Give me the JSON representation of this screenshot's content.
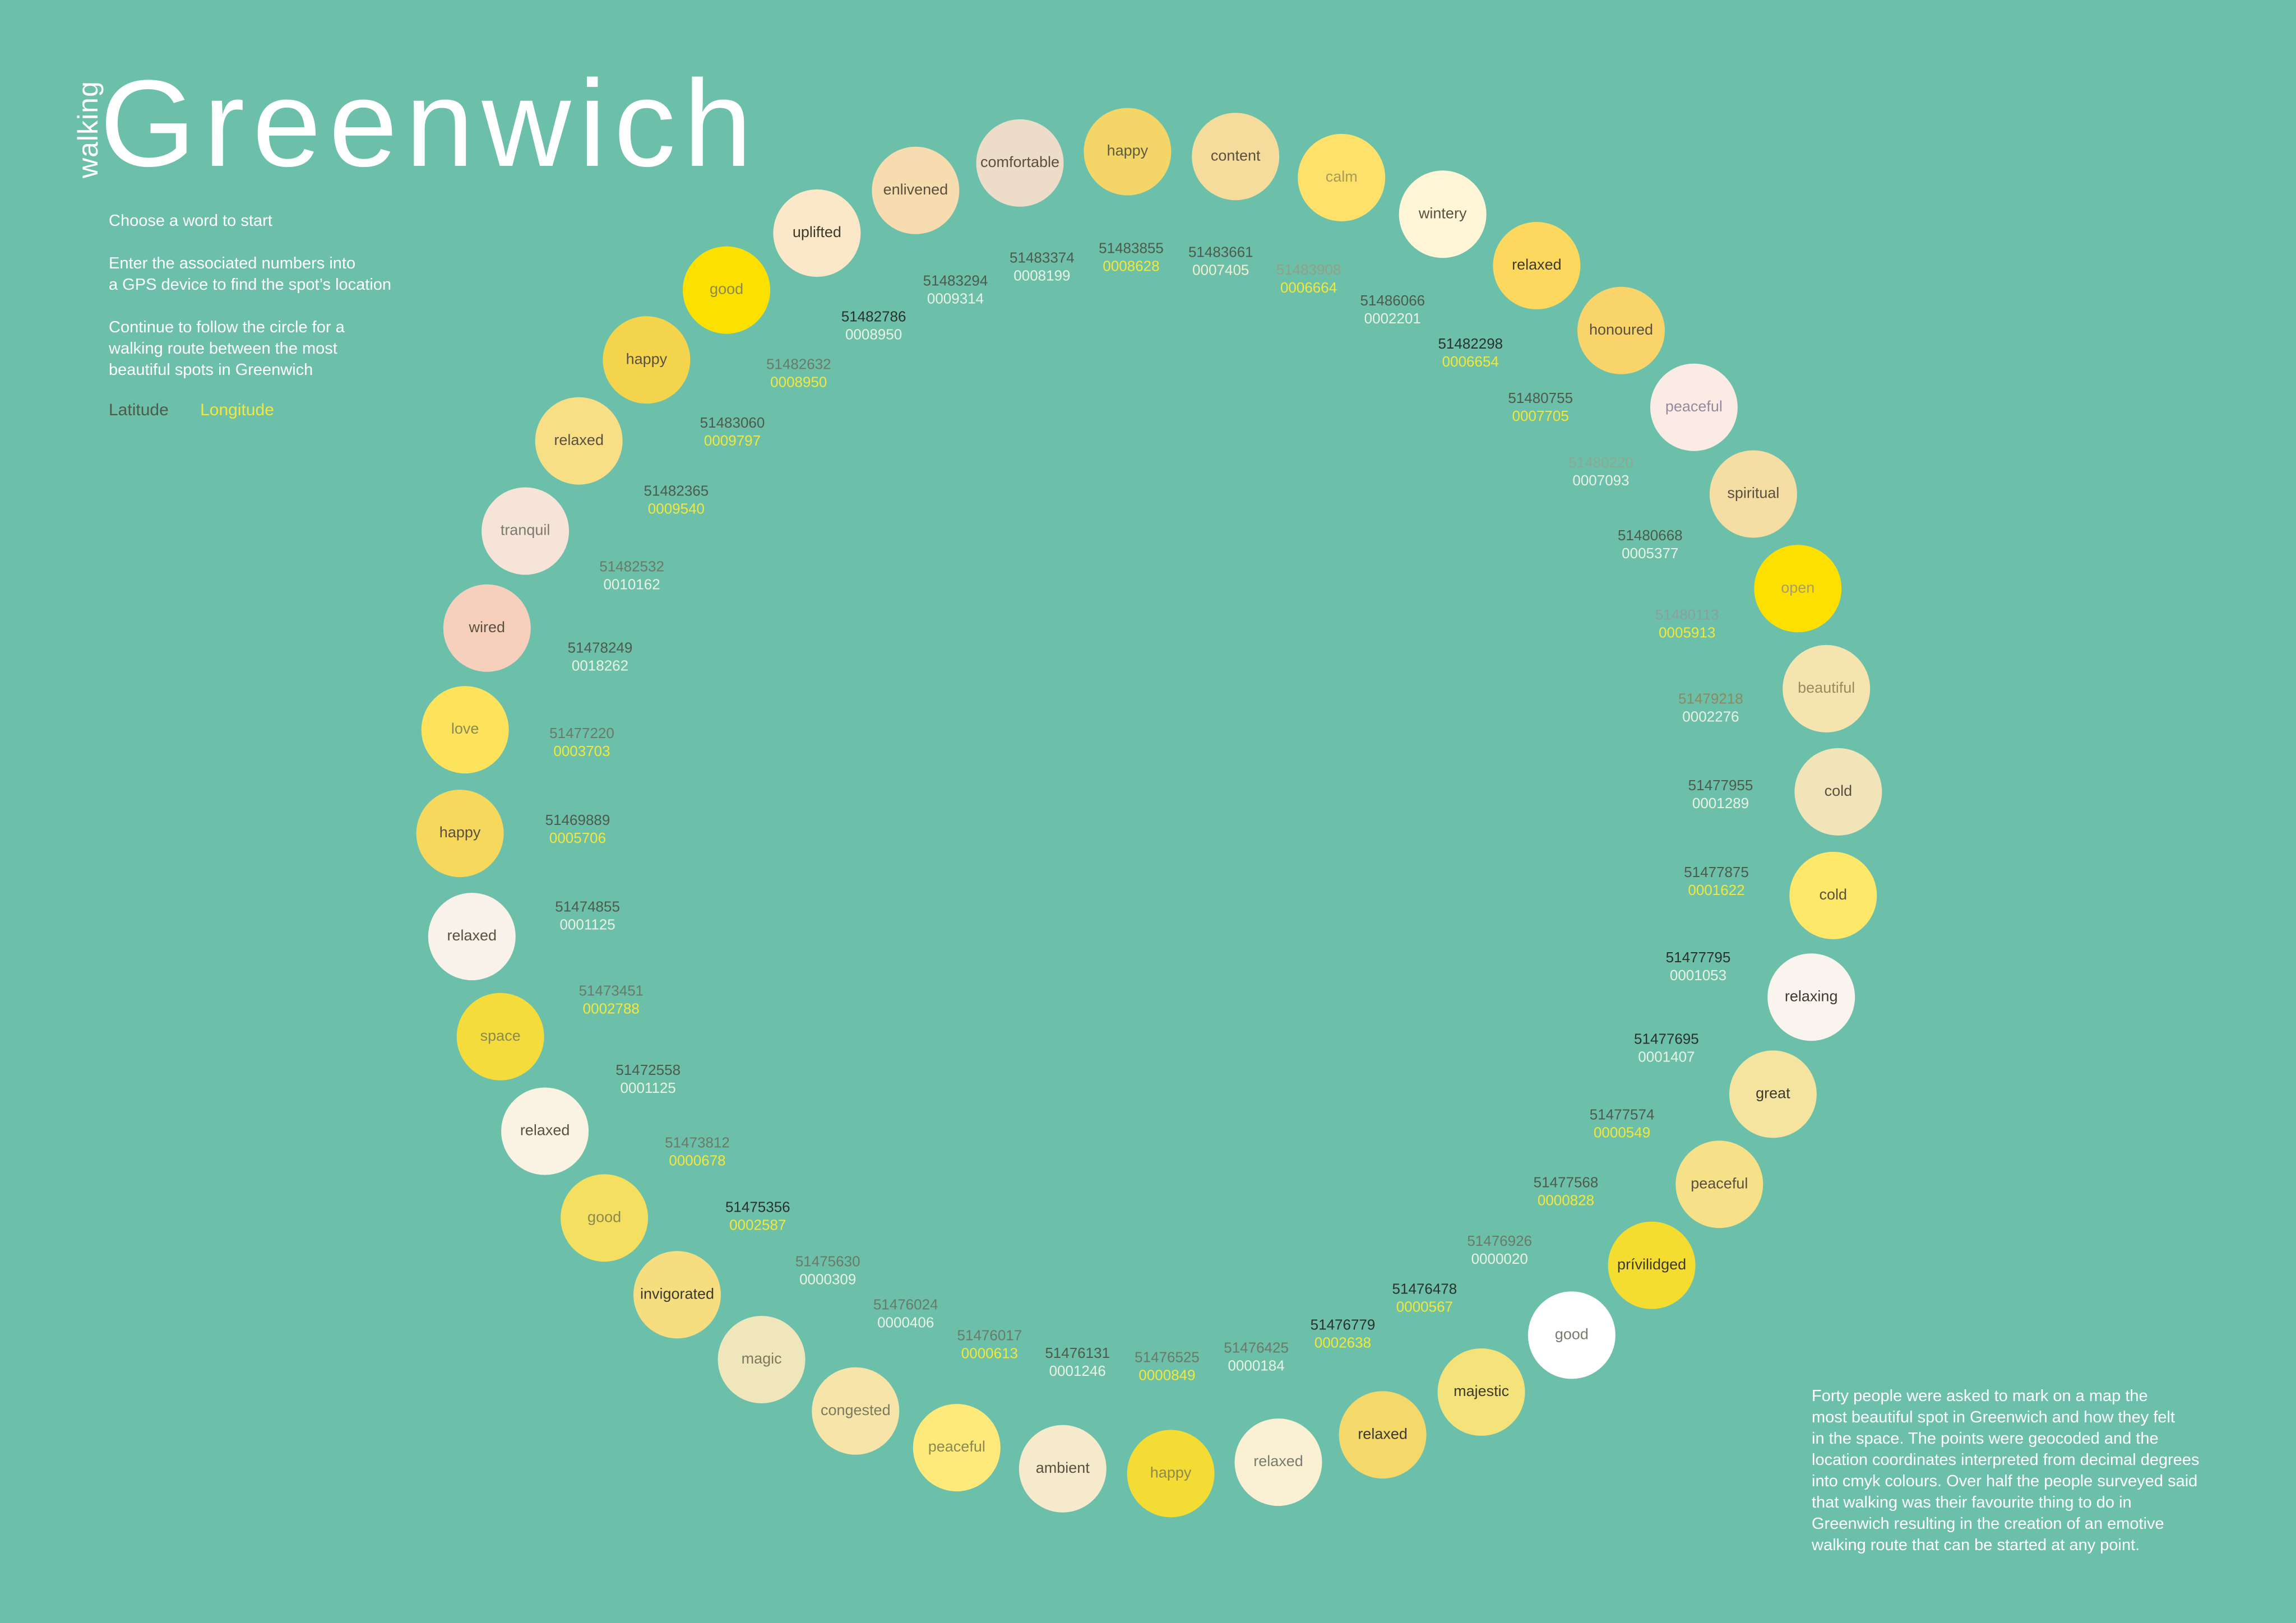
{
  "header": {
    "subtitle": "walking",
    "title": "Greenwich"
  },
  "intro": {
    "p1": "Choose a word to start",
    "p2": "Enter the associated numbers into\na GPS device to find the spot’s location",
    "p3": "Continue to follow the circle for a\nwalking route between the most\nbeautiful spots in Greenwich"
  },
  "legend": {
    "latitude_label": "Latitude",
    "longitude_label": "Longitude",
    "latitude_color": "#4d5b4c",
    "longitude_color": "#f5e63a"
  },
  "footnote": "Forty people were asked to mark on a map the\nmost beautiful spot in Greenwich and how they felt\nin the space. The points were geocoded and the\nlocation coordinates interpreted from decimal degrees\ninto cmyk colours. Over half the people surveyed said\nthat walking was their favourite thing to do in\nGreenwich resulting in the creation of an emotive\nwalking route that can be started at any  point.",
  "spots": [
    {
      "word": "happy",
      "lat": "51483855",
      "lon": "0008628",
      "fill": "#f4d568",
      "latc": "#4d5b4c",
      "lonc": "#f5e63a",
      "wordc": "#5f5a3d"
    },
    {
      "word": "content",
      "lat": "51483661",
      "lon": "0007405",
      "fill": "#f6dc9c",
      "latc": "#4d5b4c",
      "lonc": "#f2f0d0",
      "wordc": "#5a5040"
    },
    {
      "word": "calm",
      "lat": "51483908",
      "lon": "0006664",
      "fill": "#fde16a",
      "latc": "#92a088",
      "lonc": "#f5e63a",
      "wordc": "#a89a5a"
    },
    {
      "word": "wintery",
      "lat": "51486066",
      "lon": "0002201",
      "fill": "#fff6d8",
      "latc": "#4d5b4c",
      "lonc": "#eaf2e4",
      "wordc": "#5a5040"
    },
    {
      "word": "relaxed",
      "lat": "51482298",
      "lon": "0006654",
      "fill": "#fcd95e",
      "latc": "#2a322a",
      "lonc": "#f5e63a",
      "wordc": "#3c3a2c"
    },
    {
      "word": "honoured",
      "lat": "51480755",
      "lon": "0007705",
      "fill": "#f8d46a",
      "latc": "#4d5b4c",
      "lonc": "#f5e63a",
      "wordc": "#5a5040"
    },
    {
      "word": "peaceful",
      "lat": "51480220",
      "lon": "0007093",
      "fill": "#faece4",
      "latc": "#8aa894",
      "lonc": "#eaf2e4",
      "wordc": "#9a88a0"
    },
    {
      "word": "spiritual",
      "lat": "51480668",
      "lon": "0005377",
      "fill": "#f4dea4",
      "latc": "#4d5b4c",
      "lonc": "#eaf2e4",
      "wordc": "#5a5040"
    },
    {
      "word": "open",
      "lat": "51480113",
      "lon": "0005913",
      "fill": "#fde000",
      "latc": "#8aa0a0",
      "lonc": "#f5e63a",
      "wordc": "#a8a060"
    },
    {
      "word": "beautiful",
      "lat": "51479218",
      "lon": "0002276",
      "fill": "#f6e4b0",
      "latc": "#8a8a60",
      "lonc": "#eaf2e4",
      "wordc": "#9a8a60"
    },
    {
      "word": "cold",
      "lat": "51477955",
      "lon": "0001289",
      "fill": "#f0e4b8",
      "latc": "#4d5b4c",
      "lonc": "#eaf2e4",
      "wordc": "#5a5040"
    },
    {
      "word": "cold",
      "lat": "51477875",
      "lon": "0001622",
      "fill": "#fde86a",
      "latc": "#4d5b4c",
      "lonc": "#f5e63a",
      "wordc": "#5a5040"
    },
    {
      "word": "relaxing",
      "lat": "51477795",
      "lon": "0001053",
      "fill": "#faf4ee",
      "latc": "#2a322a",
      "lonc": "#eaf2e4",
      "wordc": "#3c3a2c"
    },
    {
      "word": "great",
      "lat": "51477695",
      "lon": "0001407",
      "fill": "#f4e4a0",
      "latc": "#2a322a",
      "lonc": "#eaf2e4",
      "wordc": "#3c3a2c"
    },
    {
      "word": "peaceful",
      "lat": "51477574",
      "lon": "0000549",
      "fill": "#f6e088",
      "latc": "#4d5b4c",
      "lonc": "#f5e63a",
      "wordc": "#5a5040"
    },
    {
      "word": "prívilidged",
      "lat": "51477568",
      "lon": "0000828",
      "fill": "#f4dc30",
      "latc": "#4d5b4c",
      "lonc": "#f5e63a",
      "wordc": "#3c3a2c"
    },
    {
      "word": "good",
      "lat": "51476926",
      "lon": "0000020",
      "fill": "#ffffff",
      "latc": "#6a7a68",
      "lonc": "#eaf2e4",
      "wordc": "#7a7a70"
    },
    {
      "word": "majestic",
      "lat": "51476478",
      "lon": "0000567",
      "fill": "#f4e27a",
      "latc": "#2a322a",
      "lonc": "#f5e63a",
      "wordc": "#3c3a2c"
    },
    {
      "word": "relaxed",
      "lat": "51476779",
      "lon": "0002638",
      "fill": "#f4d86a",
      "latc": "#2a322a",
      "lonc": "#f5e63a",
      "wordc": "#3c3a2c"
    },
    {
      "word": "relaxed",
      "lat": "51476425",
      "lon": "0000184",
      "fill": "#faf0d4",
      "latc": "#6a7a68",
      "lonc": "#eaf2e4",
      "wordc": "#7a7a70"
    },
    {
      "word": "happy",
      "lat": "51476525",
      "lon": "0000849",
      "fill": "#f4dc34",
      "latc": "#6a7a68",
      "lonc": "#f5e63a",
      "wordc": "#8a8a50"
    },
    {
      "word": "ambient",
      "lat": "51476131",
      "lon": "0001246",
      "fill": "#f6eacc",
      "latc": "#4d5b4c",
      "lonc": "#eaf2e4",
      "wordc": "#5a5040"
    },
    {
      "word": "peaceful",
      "lat": "51476017",
      "lon": "0000613",
      "fill": "#fdea7a",
      "latc": "#6a7a68",
      "lonc": "#f5e63a",
      "wordc": "#8a8a50"
    },
    {
      "word": "congested",
      "lat": "51476024",
      "lon": "0000406",
      "fill": "#f6e4a8",
      "latc": "#6a7a68",
      "lonc": "#eaf2e4",
      "wordc": "#7a7a60"
    },
    {
      "word": "magic",
      "lat": "51475630",
      "lon": "0000309",
      "fill": "#f0e6bc",
      "latc": "#6a7a68",
      "lonc": "#eaf2e4",
      "wordc": "#7a7a60"
    },
    {
      "word": "invigorated",
      "lat": "51475356",
      "lon": "0002587",
      "fill": "#f6de80",
      "latc": "#2a322a",
      "lonc": "#f5e63a",
      "wordc": "#3c3a2c"
    },
    {
      "word": "good",
      "lat": "51473812",
      "lon": "0000678",
      "fill": "#f4df60",
      "latc": "#6a7a68",
      "lonc": "#f5e63a",
      "wordc": "#8a8a50"
    },
    {
      "word": "relaxed",
      "lat": "51472558",
      "lon": "0001125",
      "fill": "#faf2e2",
      "latc": "#4d5b4c",
      "lonc": "#eaf2e4",
      "wordc": "#5a5040"
    },
    {
      "word": "space",
      "lat": "51473451",
      "lon": "0002788",
      "fill": "#f4dc3c",
      "latc": "#6a7a68",
      "lonc": "#f5e63a",
      "wordc": "#8a8a50"
    },
    {
      "word": "relaxed",
      "lat": "51474855",
      "lon": "0001125",
      "fill": "#f8f2ea",
      "latc": "#4d5b4c",
      "lonc": "#eaf2e4",
      "wordc": "#5a5040"
    },
    {
      "word": "happy",
      "lat": "51469889",
      "lon": "0005706",
      "fill": "#f6d85c",
      "latc": "#4d5b4c",
      "lonc": "#f5e63a",
      "wordc": "#5a5040"
    },
    {
      "word": "love",
      "lat": "51477220",
      "lon": "0003703",
      "fill": "#fde25c",
      "latc": "#6a7a68",
      "lonc": "#f5e63a",
      "wordc": "#8a8a50"
    },
    {
      "word": "wired",
      "lat": "51478249",
      "lon": "0018262",
      "fill": "#f6d0bc",
      "latc": "#4d5b4c",
      "lonc": "#eaf2e4",
      "wordc": "#5a5040"
    },
    {
      "word": "tranquil",
      "lat": "51482532",
      "lon": "0010162",
      "fill": "#f6e4d8",
      "latc": "#6a7a68",
      "lonc": "#eaf2e4",
      "wordc": "#7a7a70"
    },
    {
      "word": "relaxed",
      "lat": "51482365",
      "lon": "0009540",
      "fill": "#f8de84",
      "latc": "#4d5b4c",
      "lonc": "#f5e63a",
      "wordc": "#5a5040"
    },
    {
      "word": "happy",
      "lat": "51483060",
      "lon": "0009797",
      "fill": "#f4d44c",
      "latc": "#4d5b4c",
      "lonc": "#f5e63a",
      "wordc": "#5a5040"
    },
    {
      "word": "good",
      "lat": "51482632",
      "lon": "0008950",
      "fill": "#fce000",
      "latc": "#6a7a68",
      "lonc": "#f5e63a",
      "wordc": "#8a8a50"
    },
    {
      "word": "uplifted",
      "lat": "51482786",
      "lon": "0008950",
      "fill": "#fbe8c8",
      "latc": "#2a322a",
      "lonc": "#eaf2e4",
      "wordc": "#3c3a2c"
    },
    {
      "word": "enlivened",
      "lat": "51483294",
      "lon": "0009314",
      "fill": "#f6dcae",
      "latc": "#4d5b4c",
      "lonc": "#eaf2e4",
      "wordc": "#5a5040"
    },
    {
      "word": "comfortable",
      "lat": "51483374",
      "lon": "0008199",
      "fill": "#ecdcc8",
      "latc": "#4d5b4c",
      "lonc": "#eaf2e4",
      "wordc": "#5a5040"
    }
  ]
}
